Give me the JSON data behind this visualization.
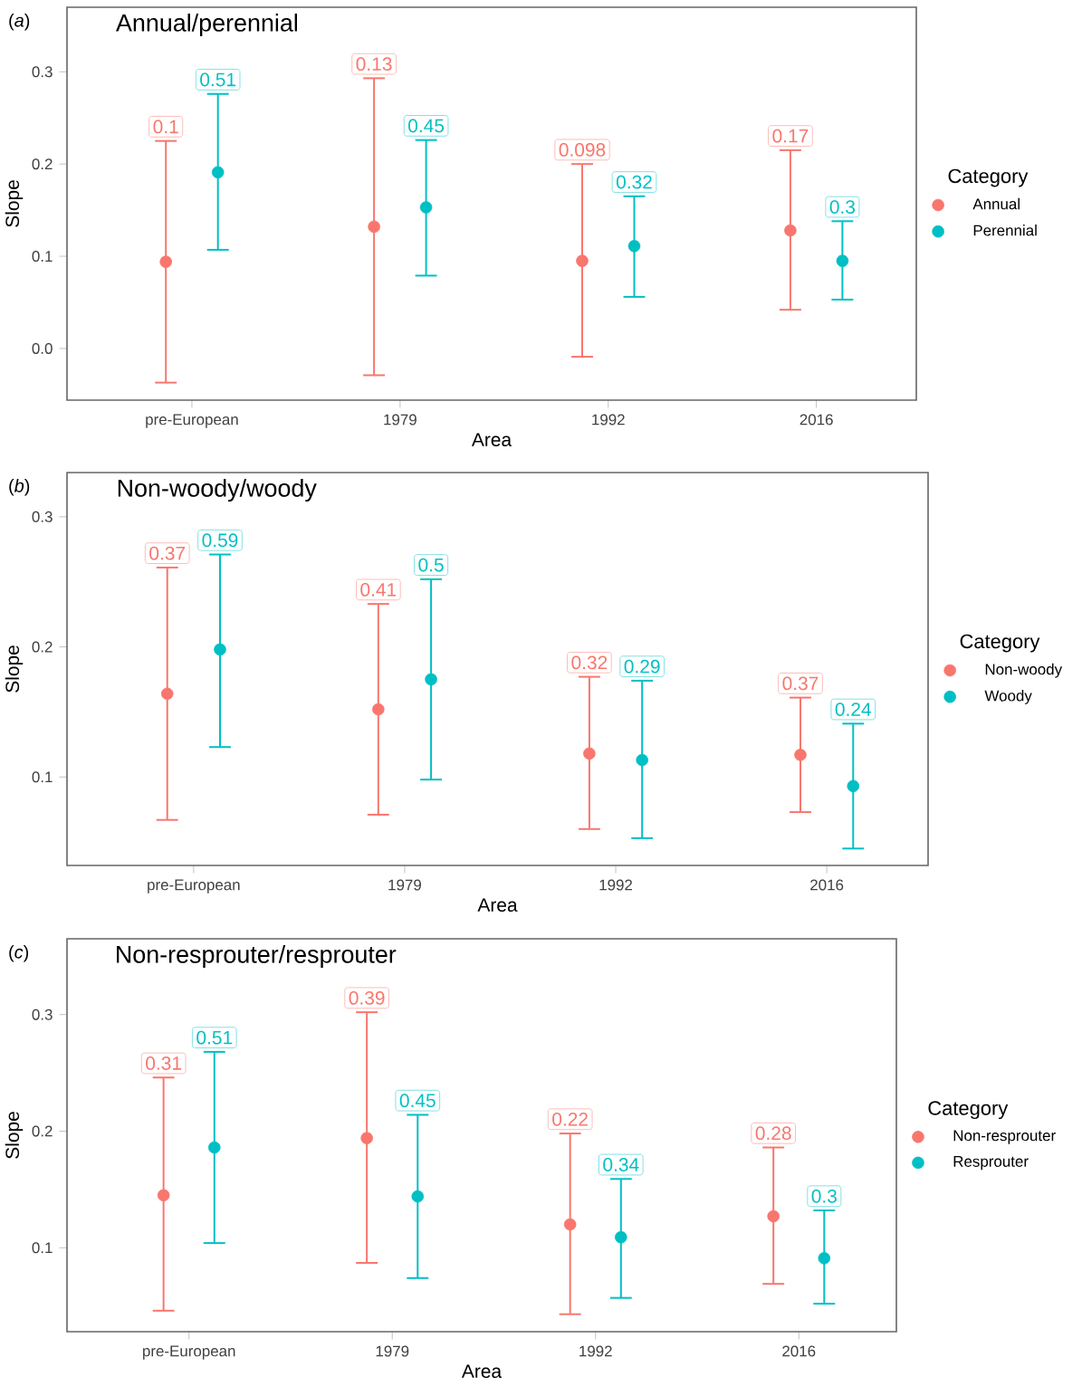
{
  "chart_data": [
    {
      "type": "scatter",
      "title": "Annual/perennial",
      "xlabel": "Area",
      "ylabel": "Slope",
      "legend_title": "Category",
      "legend": "right",
      "marker": "circle",
      "categories": [
        "pre-European",
        "1979",
        "1992",
        "2016"
      ],
      "ylim": [
        -0.056,
        0.37
      ],
      "yticks": [
        {
          "value": 0,
          "label": "0.0"
        },
        0.1,
        0.2,
        0.3
      ],
      "series": [
        {
          "name": "Annual",
          "color": "#f8766d",
          "values": [
            0.094,
            0.132,
            0.095,
            0.128
          ],
          "errors": [
            [
              -0.037,
              0.225
            ],
            [
              -0.029,
              0.293
            ],
            [
              -0.009,
              0.2
            ],
            [
              0.042,
              0.215
            ]
          ]
        },
        {
          "name": "Perennial",
          "color": "#00bfc4",
          "values": [
            0.191,
            0.153,
            0.111,
            0.095
          ],
          "errors": [
            [
              0.107,
              0.276
            ],
            [
              0.079,
              0.226
            ],
            [
              0.056,
              0.165
            ],
            [
              0.053,
              0.138
            ]
          ]
        }
      ],
      "annotations": [
        "(*a*)",
        "0.1",
        "0.13",
        "0.098",
        "0.17",
        "0.51",
        "0.45",
        "0.32",
        "0.3"
      ]
    },
    {
      "type": "scatter",
      "title": "Non-woody/woody",
      "xlabel": "Area",
      "ylabel": "Slope",
      "legend_title": "Category",
      "legend": "right",
      "marker": "circle",
      "categories": [
        "pre-European",
        "1979",
        "1992",
        "2016"
      ],
      "ylim": [
        0.032,
        0.334
      ],
      "yticks": [
        0.1,
        0.2,
        0.3
      ],
      "series": [
        {
          "name": "Non-woody",
          "color": "#f8766d",
          "values": [
            0.164,
            0.152,
            0.118,
            0.117
          ],
          "errors": [
            [
              0.067,
              0.261
            ],
            [
              0.071,
              0.233
            ],
            [
              0.06,
              0.177
            ],
            [
              0.073,
              0.161
            ]
          ]
        },
        {
          "name": "Woody",
          "color": "#00bfc4",
          "values": [
            0.198,
            0.175,
            0.113,
            0.093
          ],
          "errors": [
            [
              0.123,
              0.271
            ],
            [
              0.098,
              0.252
            ],
            [
              0.053,
              0.174
            ],
            [
              0.045,
              0.141
            ]
          ]
        }
      ],
      "annotations": [
        "(*b*)",
        "0.37",
        "0.41",
        "0.32",
        "0.37",
        "0.59",
        "0.5",
        "0.29",
        "0.24"
      ]
    },
    {
      "type": "scatter",
      "title": "Non-resprouter/resprouter",
      "xlabel": "Area",
      "ylabel": "Slope",
      "legend_title": "Category",
      "legend": "right",
      "marker": "circle",
      "categories": [
        "pre-European",
        "1979",
        "1992",
        "2016"
      ],
      "ylim": [
        0.028,
        0.365
      ],
      "yticks": [
        0.1,
        0.2,
        0.3
      ],
      "series": [
        {
          "name": "Non-resprouter",
          "color": "#f8766d",
          "values": [
            0.145,
            0.194,
            0.12,
            0.127
          ],
          "errors": [
            [
              0.046,
              0.246
            ],
            [
              0.087,
              0.302
            ],
            [
              0.043,
              0.198
            ],
            [
              0.069,
              0.186
            ]
          ]
        },
        {
          "name": "Resprouter",
          "color": "#00bfc4",
          "values": [
            0.186,
            0.144,
            0.109,
            0.091
          ],
          "errors": [
            [
              0.104,
              0.268
            ],
            [
              0.074,
              0.214
            ],
            [
              0.057,
              0.159
            ],
            [
              0.052,
              0.132
            ]
          ]
        }
      ],
      "annotations": [
        "(*c*)",
        "0.31",
        "0.39",
        "0.22",
        "0.28",
        "0.51",
        "0.45",
        "0.34",
        "0.3"
      ]
    }
  ]
}
